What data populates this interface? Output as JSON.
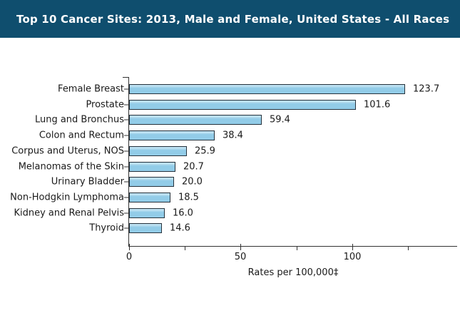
{
  "header": {
    "title": "Top 10 Cancer Sites: 2013, Male and Female, United States - All Races",
    "bg_color": "#0F4E6E",
    "text_color": "#FFFFFF"
  },
  "chart_data": {
    "type": "bar",
    "orientation": "horizontal",
    "title": "Top 10 Cancer Sites: 2013, Male and Female, United States - All Races",
    "categories": [
      "Female Breast",
      "Prostate",
      "Lung and Bronchus",
      "Colon and Rectum",
      "Corpus and Uterus, NOS",
      "Melanomas of the Skin",
      "Urinary Bladder",
      "Non-Hodgkin Lymphoma",
      "Kidney and Renal Pelvis",
      "Thyroid"
    ],
    "values": [
      123.7,
      101.6,
      59.4,
      38.4,
      25.9,
      20.7,
      20.0,
      18.5,
      16.0,
      14.6
    ],
    "value_labels": [
      "123.7",
      "101.6",
      "59.4",
      "38.4",
      "25.9",
      "20.7",
      "20.0",
      "18.5",
      "16.0",
      "14.6"
    ],
    "xlabel": "Rates per 100,000‡",
    "ylabel": "",
    "xlim": [
      0,
      147
    ],
    "x_major_ticks": [
      0,
      50,
      100
    ],
    "x_major_tick_labels": [
      "0",
      "50",
      "100"
    ],
    "x_minor_ticks": [
      25,
      75,
      125
    ],
    "grid": false,
    "legend": null,
    "bar_fill": "#92CCE8",
    "bar_border": "#26323C",
    "axis_color": "#333333",
    "text_color": "#1A1A1A"
  }
}
